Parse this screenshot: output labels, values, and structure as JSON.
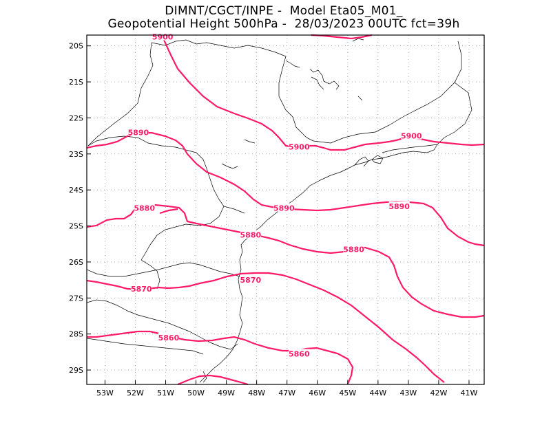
{
  "header": {
    "line1": "DIMNT/CGCT/INPE -  Model Eta05_M01_",
    "line2": "Geopotential Height 500hPa -  28/03/2023 00UTC fct=39h"
  },
  "map": {
    "lon_range": [
      -53.6,
      -40.5
    ],
    "lat_range": [
      -29.4,
      -19.7
    ],
    "lon_ticks": [
      "53W",
      "52W",
      "51W",
      "50W",
      "49W",
      "48W",
      "47W",
      "46W",
      "45W",
      "44W",
      "43W",
      "42W",
      "41W"
    ],
    "lat_ticks": [
      "20S",
      "21S",
      "22S",
      "23S",
      "24S",
      "25S",
      "26S",
      "27S",
      "28S",
      "29S"
    ],
    "contour_color": "#ff1a66",
    "contour_labels": [
      {
        "text": "5900",
        "lon": -51.1,
        "lat": -19.75
      },
      {
        "text": "5900",
        "lon": -46.6,
        "lat": -22.8
      },
      {
        "text": "5900",
        "lon": -42.9,
        "lat": -22.5
      },
      {
        "text": "5890",
        "lon": -51.9,
        "lat": -22.4
      },
      {
        "text": "5890",
        "lon": -47.1,
        "lat": -24.5
      },
      {
        "text": "5890",
        "lon": -43.3,
        "lat": -24.45
      },
      {
        "text": "5880",
        "lon": -51.7,
        "lat": -24.5
      },
      {
        "text": "5880",
        "lon": -48.2,
        "lat": -25.25
      },
      {
        "text": "5880",
        "lon": -44.8,
        "lat": -25.65
      },
      {
        "text": "5870",
        "lon": -51.8,
        "lat": -26.75
      },
      {
        "text": "5870",
        "lon": -48.2,
        "lat": -26.5
      },
      {
        "text": "5860",
        "lon": -50.9,
        "lat": -28.1
      },
      {
        "text": "5860",
        "lon": -46.6,
        "lat": -28.55
      }
    ]
  }
}
